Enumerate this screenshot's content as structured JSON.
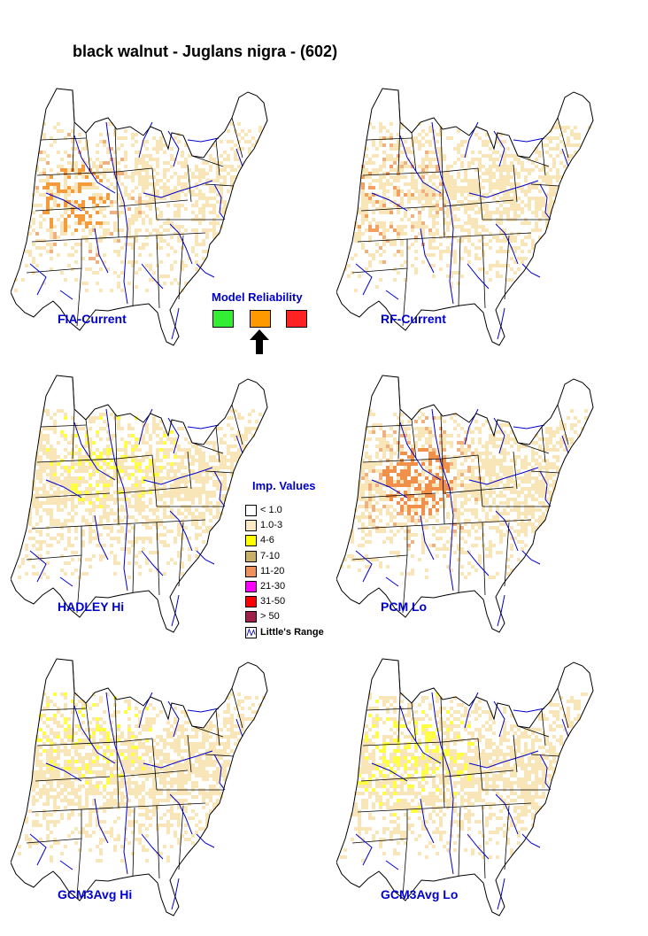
{
  "title": "black walnut - Juglans nigra - (602)",
  "maps": [
    {
      "label": "FIA-Current",
      "hot_color": "#f59b3c",
      "coverage": 0.55,
      "hotspot": [
        0.22,
        0.42
      ],
      "intensity": "mid"
    },
    {
      "label": "RF-Current",
      "hot_color": "#f3a060",
      "coverage": 0.65,
      "hotspot": [
        0.15,
        0.42
      ],
      "intensity": "low"
    },
    {
      "label": "HADLEY Hi",
      "hot_color": "#ffff44",
      "coverage": 0.7,
      "hotspot": [
        0.35,
        0.25
      ],
      "intensity": "low"
    },
    {
      "label": "PCM Lo",
      "hot_color": "#f0904a",
      "coverage": 0.72,
      "hotspot": [
        0.28,
        0.4
      ],
      "intensity": "high"
    },
    {
      "label": "GCM3Avg Hi",
      "hot_color": "#ffff44",
      "coverage": 0.7,
      "hotspot": [
        0.3,
        0.25
      ],
      "intensity": "low"
    },
    {
      "label": "GCM3Avg Lo",
      "hot_color": "#ffff44",
      "coverage": 0.72,
      "hotspot": [
        0.25,
        0.35
      ],
      "intensity": "mid"
    }
  ],
  "model_reliability": {
    "title": "Model Reliability",
    "levels": [
      {
        "color": "#33ee33"
      },
      {
        "color": "#ff9900",
        "selected": true
      },
      {
        "color": "#ff2222"
      }
    ]
  },
  "legend": {
    "title": "Imp. Values",
    "items": [
      {
        "label": "< 1.0",
        "color": "#ffffff"
      },
      {
        "label": "1.0-3",
        "color": "#fbe9c4"
      },
      {
        "label": "4-6",
        "color": "#ffff00"
      },
      {
        "label": "7-10",
        "color": "#c8b068"
      },
      {
        "label": "11-20",
        "color": "#f0905a"
      },
      {
        "label": "21-30",
        "color": "#ff00ff"
      },
      {
        "label": "31-50",
        "color": "#ff0000"
      },
      {
        "label": "> 50",
        "color": "#a0204a"
      }
    ],
    "range_label": "Little's Range"
  }
}
